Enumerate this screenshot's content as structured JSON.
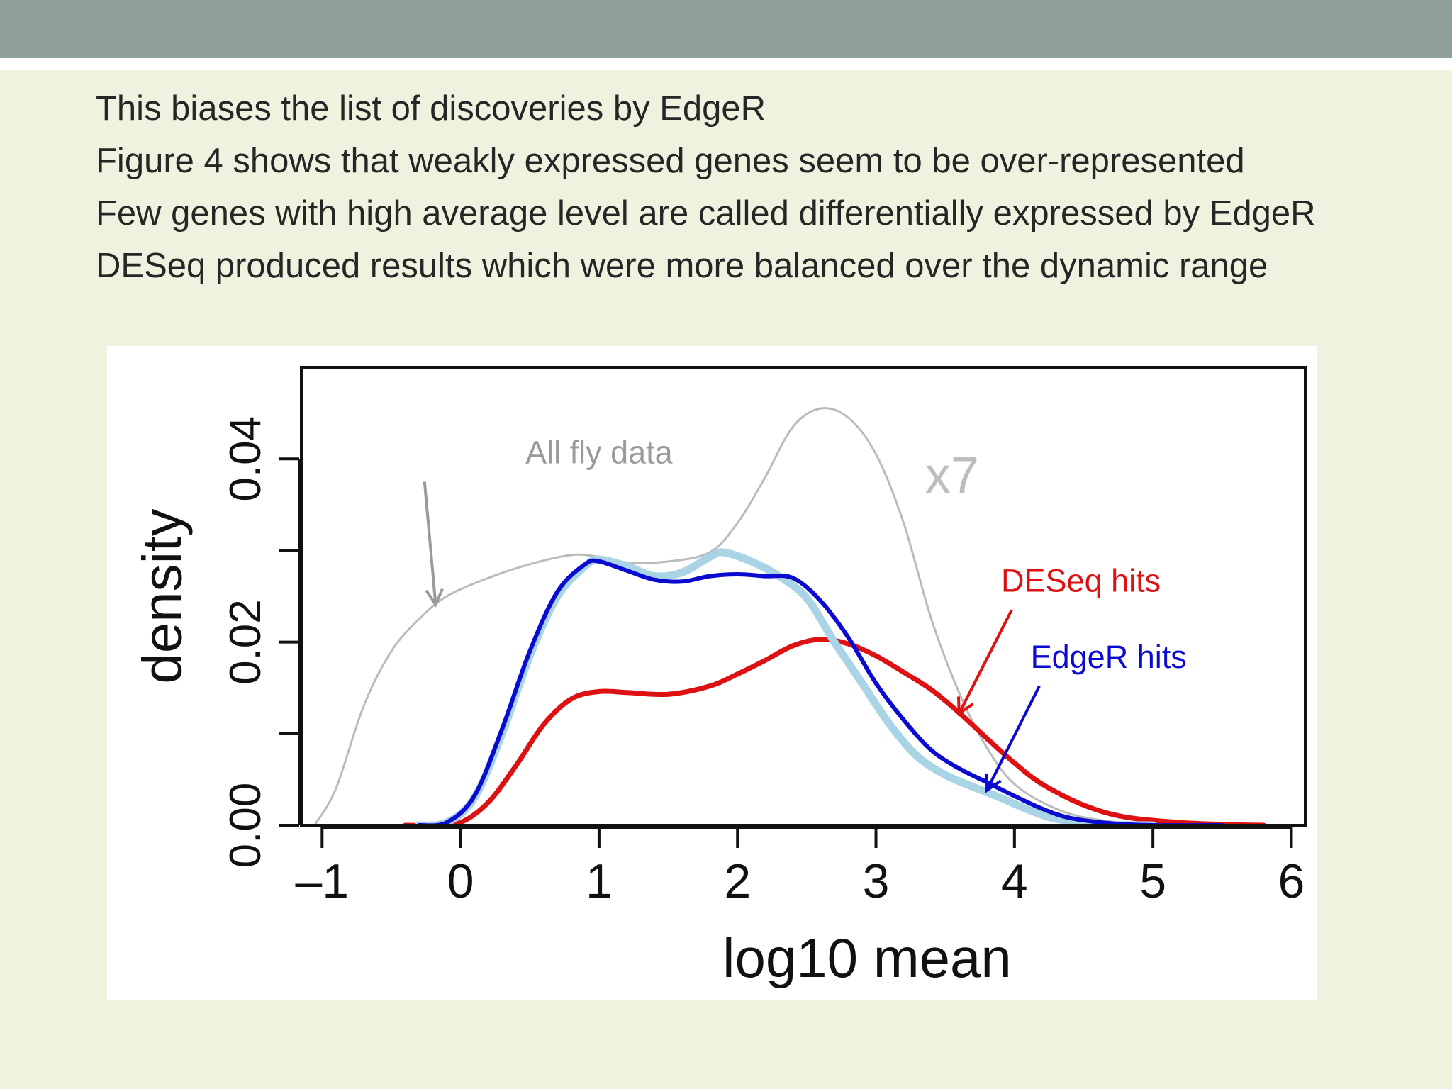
{
  "slide": {
    "bullets": [
      "This biases the list of discoveries by EdgeR",
      "Figure 4 shows that weakly expressed genes seem to be over-represented",
      "Few genes with high average level are called differentially expressed by EdgeR",
      "DESeq produced results which were more balanced over the dynamic range"
    ]
  },
  "colors": {
    "background": "#f0f2df",
    "title_band": "#8fa19a",
    "all_fly": "#bbbbbb",
    "deseq": "#dd1111",
    "edger": "#0a0ad0",
    "edger_light": "#a9d4e6",
    "annotation_gray": "#9a9a9a"
  },
  "chart_data": {
    "type": "line",
    "xlabel": "log10 mean",
    "ylabel": "density",
    "xlim": [
      -1.15,
      6.1
    ],
    "ylim": [
      0,
      0.05
    ],
    "xticks": [
      -1,
      0,
      1,
      2,
      3,
      4,
      5,
      6
    ],
    "xtick_labels": [
      "–1",
      "0",
      "1",
      "2",
      "3",
      "4",
      "5",
      "6"
    ],
    "yticks": [
      0,
      0.01,
      0.02,
      0.03,
      0.04
    ],
    "ytick_labels": [
      "0.00",
      "",
      "0.02",
      "",
      "0.04"
    ],
    "grid": false,
    "series": [
      {
        "name": "All fly data",
        "color": "#bbbbbb",
        "width": 3,
        "x": [
          -1.05,
          -0.9,
          -0.7,
          -0.5,
          -0.3,
          -0.1,
          0.2,
          0.5,
          0.8,
          1.0,
          1.2,
          1.5,
          1.8,
          2.0,
          2.2,
          2.4,
          2.6,
          2.8,
          3.0,
          3.2,
          3.4,
          3.6,
          3.8,
          4.0,
          4.3,
          4.6,
          5.0,
          5.5
        ],
        "y": [
          0.0001,
          0.004,
          0.013,
          0.019,
          0.0225,
          0.025,
          0.027,
          0.0285,
          0.0295,
          0.0293,
          0.0287,
          0.0288,
          0.0298,
          0.033,
          0.038,
          0.0435,
          0.0455,
          0.0445,
          0.0405,
          0.033,
          0.0225,
          0.0145,
          0.0085,
          0.0045,
          0.0018,
          0.0006,
          0.0001,
          0.0
        ]
      },
      {
        "name": "DESeq hits",
        "color": "#dd1111",
        "width": 7,
        "x": [
          -0.4,
          -0.2,
          0.0,
          0.2,
          0.4,
          0.6,
          0.8,
          1.0,
          1.2,
          1.5,
          1.8,
          2.0,
          2.2,
          2.4,
          2.6,
          2.8,
          3.0,
          3.2,
          3.4,
          3.6,
          3.8,
          4.0,
          4.2,
          4.5,
          4.8,
          5.2,
          5.5,
          5.8
        ],
        "y": [
          0.0,
          0.0,
          0.0003,
          0.0025,
          0.0065,
          0.011,
          0.0138,
          0.0146,
          0.0145,
          0.0143,
          0.0152,
          0.0165,
          0.018,
          0.0196,
          0.0203,
          0.0198,
          0.0185,
          0.0167,
          0.0148,
          0.0123,
          0.0095,
          0.0068,
          0.0045,
          0.0022,
          0.0009,
          0.0003,
          0.0001,
          0.0
        ]
      },
      {
        "name": "",
        "color": "#a9d4e6",
        "width": 11,
        "x": [
          -0.3,
          -0.1,
          0.1,
          0.3,
          0.5,
          0.7,
          0.9,
          1.0,
          1.2,
          1.4,
          1.6,
          1.8,
          1.9,
          2.1,
          2.3,
          2.5,
          2.7,
          2.9,
          3.1,
          3.3,
          3.5,
          3.7,
          3.9,
          4.1,
          4.3,
          4.6,
          5.0
        ],
        "y": [
          0.0,
          0.0003,
          0.003,
          0.01,
          0.0185,
          0.025,
          0.0283,
          0.029,
          0.0283,
          0.0272,
          0.0276,
          0.0293,
          0.0298,
          0.0288,
          0.0272,
          0.0248,
          0.02,
          0.0155,
          0.011,
          0.0075,
          0.0055,
          0.0042,
          0.003,
          0.0017,
          0.0007,
          0.0001,
          0.0
        ]
      },
      {
        "name": "EdgeR hits",
        "color": "#0a0ad0",
        "width": 6,
        "x": [
          -0.3,
          -0.1,
          0.1,
          0.3,
          0.5,
          0.7,
          0.9,
          1.0,
          1.2,
          1.4,
          1.6,
          1.8,
          2.0,
          2.2,
          2.4,
          2.6,
          2.8,
          3.0,
          3.2,
          3.4,
          3.6,
          3.8,
          4.0,
          4.2,
          4.4,
          4.7,
          5.0,
          5.5
        ],
        "y": [
          0.0,
          0.0003,
          0.0032,
          0.0105,
          0.019,
          0.0255,
          0.0285,
          0.0288,
          0.0278,
          0.0268,
          0.0266,
          0.0272,
          0.0274,
          0.0272,
          0.027,
          0.0245,
          0.0205,
          0.0155,
          0.0115,
          0.0082,
          0.0062,
          0.0047,
          0.0032,
          0.0018,
          0.0008,
          0.0002,
          0.0,
          0.0
        ]
      }
    ],
    "annotations": [
      {
        "text": "All fly data",
        "x": 1.0,
        "y": 0.0395,
        "color": "#9a9a9a",
        "size": 45,
        "arrow_from": [
          -0.26,
          0.0375
        ],
        "arrow_to": [
          -0.18,
          0.0241
        ]
      },
      {
        "text": "x7",
        "x": 3.55,
        "y": 0.0363,
        "color": "#bdbdbd",
        "size": 72,
        "arrow_from": null,
        "arrow_to": null
      },
      {
        "text": "DESeq hits",
        "x": 4.48,
        "y": 0.0255,
        "color": "#dd1111",
        "size": 45,
        "arrow_from": [
          3.98,
          0.0235
        ],
        "arrow_to": [
          3.6,
          0.0122
        ]
      },
      {
        "text": "EdgeR hits",
        "x": 4.68,
        "y": 0.0172,
        "color": "#0a0ad0",
        "size": 45,
        "arrow_from": [
          4.18,
          0.0152
        ],
        "arrow_to": [
          3.8,
          0.0038
        ]
      }
    ]
  }
}
